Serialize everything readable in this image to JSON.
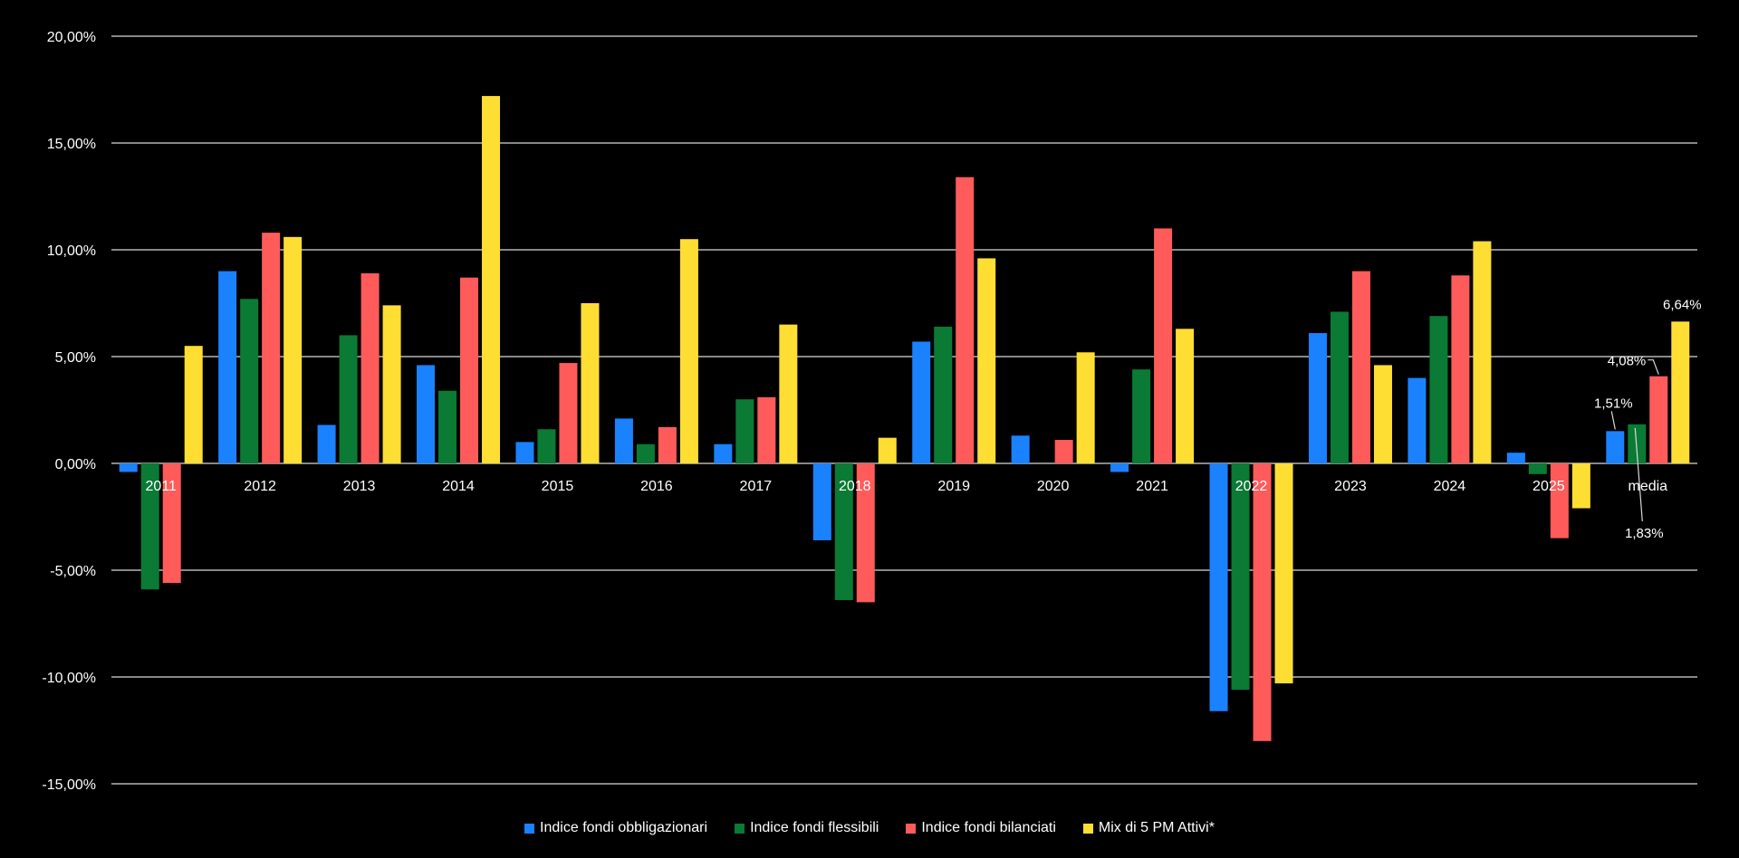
{
  "chart_data": {
    "type": "bar",
    "title": "",
    "xlabel": "",
    "ylabel": "",
    "ylim": [
      -15,
      20
    ],
    "yticks": [
      "20,00%",
      "15,00%",
      "10,00%",
      "5,00%",
      "0,00%",
      "-5,00%",
      "-10,00%",
      "-15,00%"
    ],
    "grid": true,
    "legend_position": "bottom",
    "categories": [
      "2011",
      "2012",
      "2013",
      "2014",
      "2015",
      "2016",
      "2017",
      "2018",
      "2019",
      "2020",
      "2021",
      "2022",
      "2023",
      "2024",
      "2025",
      "media"
    ],
    "series": [
      {
        "name": "Indice fondi obbligazionari",
        "color": "#1a82ff",
        "values": [
          -0.4,
          9.0,
          1.8,
          4.6,
          1.0,
          2.1,
          0.9,
          -3.6,
          5.7,
          1.3,
          -0.4,
          -11.6,
          6.1,
          4.0,
          0.5,
          1.51
        ]
      },
      {
        "name": "Indice fondi flessibili",
        "color": "#0a7a35",
        "values": [
          -5.9,
          7.7,
          6.0,
          3.4,
          1.6,
          0.9,
          3.0,
          -6.4,
          6.4,
          0.0,
          4.4,
          -10.6,
          7.1,
          6.9,
          -0.5,
          1.83
        ]
      },
      {
        "name": "Indice fondi bilanciati",
        "color": "#ff5b5b",
        "values": [
          -5.6,
          10.8,
          8.9,
          8.7,
          4.7,
          1.7,
          3.1,
          -6.5,
          13.4,
          1.1,
          11.0,
          -13.0,
          9.0,
          8.8,
          -3.5,
          4.08
        ]
      },
      {
        "name": "Mix di 5 PM Attivi*",
        "color": "#ffde33",
        "values": [
          5.5,
          10.6,
          7.4,
          17.2,
          7.5,
          10.5,
          6.5,
          1.2,
          9.6,
          5.2,
          6.3,
          -10.3,
          4.6,
          10.4,
          -2.1,
          6.64
        ]
      }
    ],
    "annotations": [
      {
        "category": "media",
        "series": "Indice fondi obbligazionari",
        "text": "1,51%"
      },
      {
        "category": "media",
        "series": "Indice fondi flessibili",
        "text": "1,83%"
      },
      {
        "category": "media",
        "series": "Indice fondi bilanciati",
        "text": "4,08%"
      },
      {
        "category": "media",
        "series": "Mix di 5 PM Attivi*",
        "text": "6,64%"
      }
    ]
  }
}
